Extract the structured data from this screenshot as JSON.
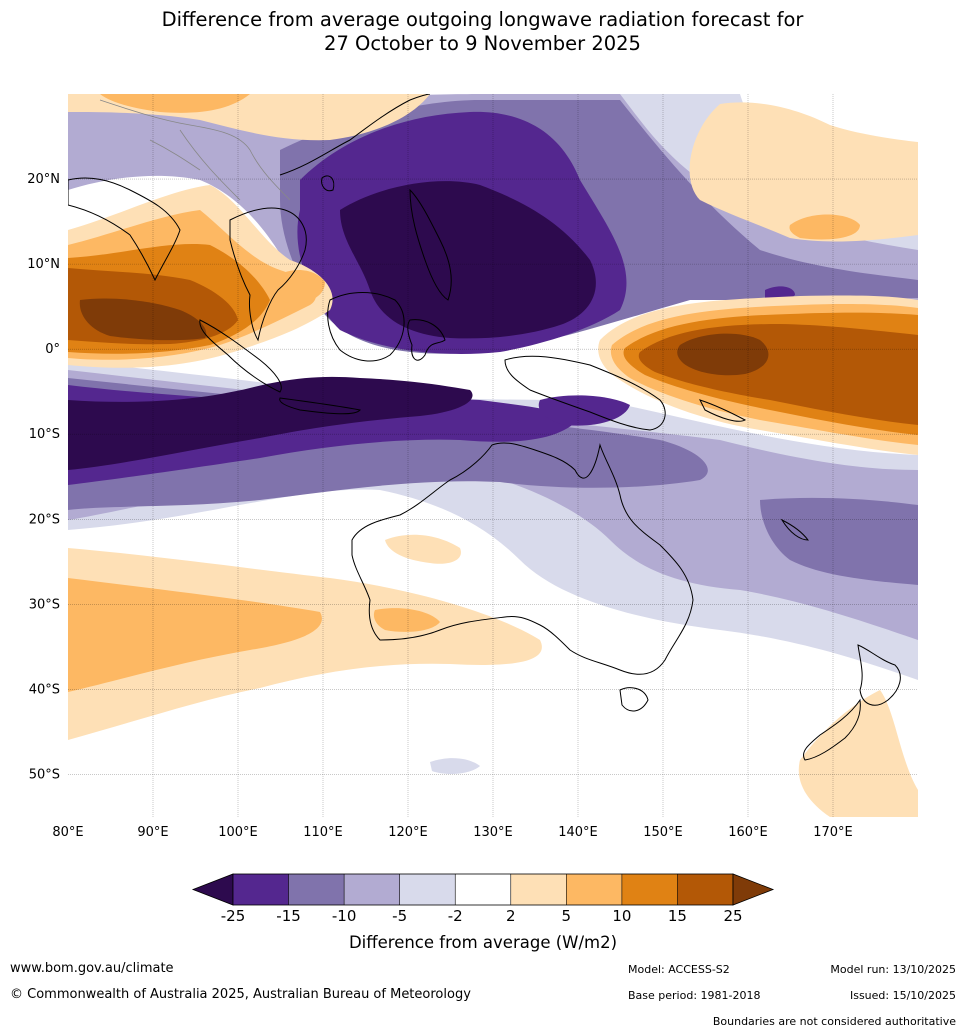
{
  "title": {
    "line1": "Difference from average outgoing longwave radiation forecast for",
    "line2": "27 October to 9 November 2025"
  },
  "map": {
    "lon_range": [
      80,
      180
    ],
    "lat_range": [
      -55,
      30
    ],
    "lat_labels": [
      "20°N",
      "10°N",
      "0°",
      "10°S",
      "20°S",
      "30°S",
      "40°S",
      "50°S"
    ],
    "lat_values": [
      20,
      10,
      0,
      -10,
      -20,
      -30,
      -40,
      -50
    ],
    "lon_labels": [
      "80°E",
      "90°E",
      "100°E",
      "110°E",
      "120°E",
      "130°E",
      "140°E",
      "150°E",
      "160°E",
      "170°E"
    ],
    "lon_values": [
      80,
      90,
      100,
      110,
      120,
      130,
      140,
      150,
      160,
      170
    ]
  },
  "colorbar": {
    "ticks": [
      "-25",
      "-15",
      "-10",
      "-5",
      "-2",
      "2",
      "5",
      "10",
      "15",
      "25"
    ],
    "colors": [
      "#2d0a4e",
      "#54278f",
      "#8073ac",
      "#b2abd2",
      "#d8daeb",
      "#ffffff",
      "#fee0b6",
      "#fdb863",
      "#e08214",
      "#b35806",
      "#7f3b08"
    ],
    "label": "Difference from average (W/m2)"
  },
  "footer": {
    "website": "www.bom.gov.au/climate",
    "copyright": "© Commonwealth of Australia 2025, Australian Bureau of Meteorology",
    "model": "Model: ACCESS-S2",
    "base_period": "Base period: 1981-2018",
    "model_run": "Model run: 13/10/2025",
    "issued": "Issued: 15/10/2025",
    "disclaimer": "Boundaries are not considered authoritative"
  }
}
